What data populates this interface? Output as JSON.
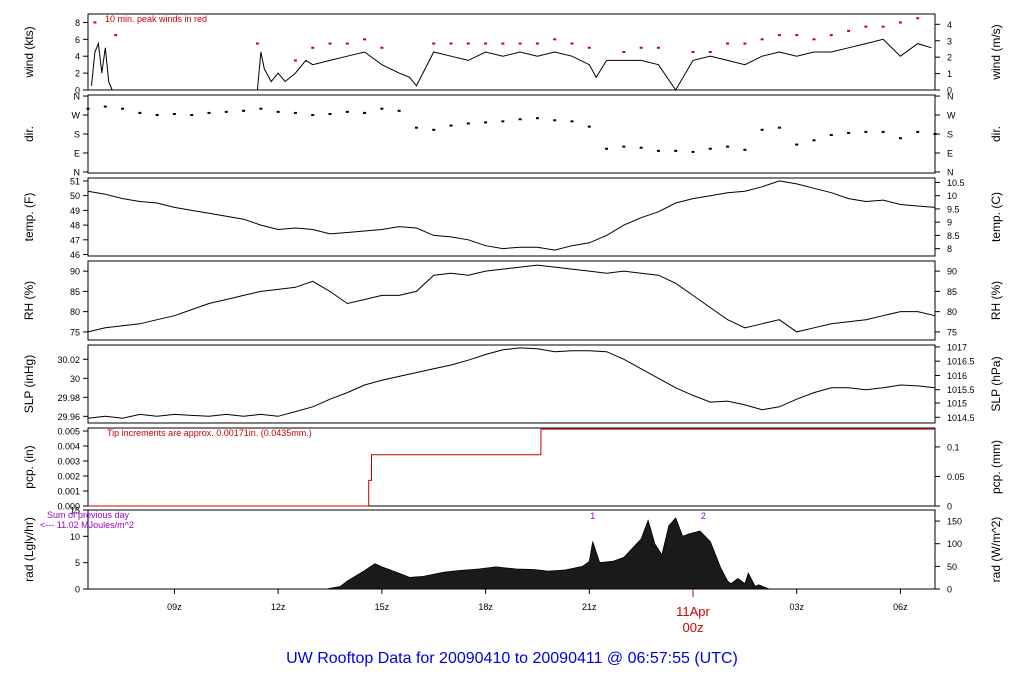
{
  "footer": {
    "title": "UW Rooftop Data for 20090410  to  20090411 @ 06:57:55  (UTC)"
  },
  "colors": {
    "peak": "#cc0000",
    "line": "#000000",
    "time": "#cc0000",
    "rad_note": "#9900cc",
    "footer": "#0000dd"
  },
  "chart_data": [
    {
      "type": "line",
      "key": "wind",
      "ylabel": "wind (kts)",
      "ylabel_right": "wind (m/s)",
      "ylim": [
        0,
        9
      ],
      "yticks": [
        0,
        2,
        4,
        6,
        8
      ],
      "right_ticks": [
        {
          "label": "0",
          "v": 0
        },
        {
          "label": "1",
          "v": 1.94
        },
        {
          "label": "2",
          "v": 3.89
        },
        {
          "label": "3",
          "v": 5.83
        },
        {
          "label": "4",
          "v": 7.78
        }
      ],
      "note": "10 min. peak winds in red",
      "series": [
        {
          "x": [
            6.6,
            6.7,
            6.8,
            6.9,
            7.0,
            7.1,
            7.2,
            7.5,
            8.0,
            9.0,
            10.0,
            11.0,
            11.4,
            11.5,
            11.6,
            11.8,
            12.0,
            12.2,
            12.5,
            12.8,
            13.0,
            13.5,
            14.0,
            14.5,
            15.0,
            15.5,
            15.8,
            16.0,
            16.5,
            17.0,
            17.5,
            18.0,
            18.5,
            19.0,
            19.5,
            20.0,
            20.5,
            21.0,
            21.2,
            21.5,
            22.0,
            22.5,
            23.0,
            23.5,
            24.0,
            24.5,
            25.0,
            25.5,
            26.0,
            26.5,
            27.0,
            27.5,
            28.0,
            28.5,
            29.0,
            29.5,
            30.0,
            30.5,
            30.9
          ],
          "y": [
            0.5,
            4.5,
            5.5,
            2,
            5,
            1,
            0,
            0,
            0,
            0,
            0,
            0,
            0,
            4.5,
            2.5,
            1,
            2,
            1,
            2,
            3.5,
            3,
            3.5,
            4,
            4.5,
            3,
            2,
            1.5,
            0.5,
            4.5,
            4,
            3.5,
            4.5,
            4,
            4.5,
            4,
            4.5,
            4,
            3,
            1.5,
            3.5,
            3.5,
            3.5,
            3,
            0,
            3.5,
            4,
            3.5,
            3,
            4,
            4.5,
            4,
            4.5,
            4.5,
            5,
            5.5,
            6,
            4,
            5.5,
            5
          ]
        },
        {
          "name": "peak",
          "x": [
            6.7,
            7.3,
            11.4,
            12.5,
            13.0,
            13.5,
            14.0,
            14.5,
            15.0,
            16.5,
            17.0,
            17.5,
            18.0,
            18.5,
            19.0,
            19.5,
            20.0,
            20.5,
            21.0,
            22.0,
            22.5,
            23.0,
            24.0,
            24.5,
            25.0,
            25.5,
            26.0,
            26.5,
            27.0,
            27.5,
            28.0,
            28.5,
            29.0,
            29.5,
            30.0,
            30.5
          ],
          "y": [
            8,
            6.5,
            5.5,
            3.5,
            5,
            5.5,
            5.5,
            6,
            5,
            5.5,
            5.5,
            5.5,
            5.5,
            5.5,
            5.5,
            5.5,
            6,
            5.5,
            5,
            4.5,
            5,
            5,
            4.5,
            4.5,
            5.5,
            5.5,
            6,
            6.5,
            6.5,
            6,
            6.5,
            7,
            7.5,
            7.5,
            8,
            8.5
          ]
        }
      ]
    },
    {
      "type": "scatter",
      "key": "dir",
      "ylabel": "dir.",
      "ylabel_right": "dir.",
      "ylim": [
        -5,
        365
      ],
      "yticks_labels": [
        "N",
        "E",
        "S",
        "W",
        "N"
      ],
      "yticks": [
        0,
        90,
        180,
        270,
        360
      ],
      "series": [
        {
          "x": [
            6.5,
            7.0,
            7.5,
            8.0,
            8.5,
            9.0,
            9.5,
            10.0,
            10.5,
            11.0,
            11.5,
            12.0,
            12.5,
            13.0,
            13.5,
            14.0,
            14.5,
            15.0,
            15.5,
            16.0,
            16.5,
            17.0,
            17.5,
            18.0,
            18.5,
            19.0,
            19.5,
            20.0,
            20.5,
            21.0,
            21.5,
            22.0,
            22.5,
            23.0,
            23.5,
            24.0,
            24.5,
            25.0,
            25.5,
            26.0,
            26.5,
            27.0,
            27.5,
            28.0,
            28.5,
            29.0,
            29.5,
            30.0,
            30.5,
            31.0
          ],
          "y": [
            300,
            310,
            300,
            280,
            270,
            275,
            270,
            280,
            285,
            290,
            300,
            285,
            280,
            270,
            275,
            285,
            280,
            300,
            290,
            210,
            200,
            220,
            230,
            235,
            240,
            250,
            255,
            245,
            240,
            215,
            110,
            120,
            115,
            100,
            100,
            95,
            110,
            120,
            105,
            200,
            210,
            130,
            150,
            175,
            185,
            190,
            190,
            160,
            190,
            180
          ]
        }
      ]
    },
    {
      "type": "line",
      "key": "temp",
      "ylabel": "temp. (F)",
      "ylabel_right": "temp. (C)",
      "ylim": [
        45.9,
        51.2
      ],
      "yticks": [
        46,
        47,
        48,
        49,
        50,
        51
      ],
      "right_ticks": [
        {
          "label": "8",
          "v": 46.4
        },
        {
          "label": "8.5",
          "v": 47.3
        },
        {
          "label": "9",
          "v": 48.2
        },
        {
          "label": "9.5",
          "v": 49.1
        },
        {
          "label": "10",
          "v": 50.0
        },
        {
          "label": "10.5",
          "v": 50.9
        }
      ],
      "series": [
        {
          "x": [
            6.5,
            7.0,
            7.5,
            8.0,
            8.5,
            9.0,
            9.5,
            10.0,
            10.5,
            11.0,
            11.5,
            12.0,
            12.5,
            13.0,
            13.5,
            14.0,
            14.5,
            15.0,
            15.5,
            16.0,
            16.5,
            17.0,
            17.5,
            18.0,
            18.5,
            19.0,
            19.5,
            20.0,
            20.5,
            21.0,
            21.5,
            22.0,
            22.5,
            23.0,
            23.5,
            24.0,
            24.5,
            25.0,
            25.5,
            26.0,
            26.5,
            27.0,
            27.5,
            28.0,
            28.5,
            29.0,
            29.5,
            30.0,
            30.5,
            31.0
          ],
          "y": [
            50.3,
            50.1,
            49.8,
            49.6,
            49.5,
            49.2,
            49.0,
            48.8,
            48.6,
            48.4,
            48.0,
            47.7,
            47.8,
            47.7,
            47.4,
            47.5,
            47.6,
            47.7,
            47.9,
            47.8,
            47.3,
            47.2,
            47.0,
            46.6,
            46.4,
            46.5,
            46.5,
            46.3,
            46.6,
            46.8,
            47.3,
            48.0,
            48.5,
            48.9,
            49.5,
            49.8,
            50.0,
            50.2,
            50.3,
            50.6,
            51.0,
            50.8,
            50.5,
            50.2,
            49.8,
            49.6,
            49.7,
            49.4,
            49.3,
            49.2
          ]
        }
      ]
    },
    {
      "type": "line",
      "key": "rh",
      "ylabel": "RH (%)",
      "ylabel_right": "RH (%)",
      "ylim": [
        73,
        92.5
      ],
      "yticks": [
        75,
        80,
        85,
        90
      ],
      "series": [
        {
          "x": [
            6.5,
            7.0,
            7.5,
            8.0,
            8.5,
            9.0,
            9.5,
            10.0,
            10.5,
            11.0,
            11.5,
            12.0,
            12.5,
            13.0,
            13.5,
            14.0,
            14.5,
            15.0,
            15.5,
            16.0,
            16.5,
            17.0,
            17.5,
            18.0,
            18.5,
            19.0,
            19.5,
            20.0,
            20.5,
            21.0,
            21.5,
            22.0,
            22.5,
            23.0,
            23.5,
            24.0,
            24.5,
            25.0,
            25.5,
            26.0,
            26.5,
            27.0,
            27.5,
            28.0,
            28.5,
            29.0,
            29.5,
            30.0,
            30.5,
            31.0
          ],
          "y": [
            75,
            76,
            76.5,
            77,
            78,
            79,
            80.5,
            82,
            83,
            84,
            85,
            85.5,
            86,
            87.5,
            85,
            82,
            83,
            84,
            84,
            85,
            89,
            89.5,
            89,
            90,
            90.5,
            91,
            91.5,
            91,
            90.5,
            90,
            89.5,
            90,
            89.5,
            89,
            87,
            84,
            81,
            78,
            76,
            77,
            78,
            75,
            76,
            77,
            77.5,
            78,
            79,
            80,
            80,
            79
          ]
        }
      ]
    },
    {
      "type": "line",
      "key": "slp",
      "ylabel": "SLP (inHg)",
      "ylabel_right": "SLP (hPa)",
      "ylim": [
        29.953,
        30.035
      ],
      "yticks": [
        29.96,
        29.98,
        30.0,
        30.02
      ],
      "right_ticks": [
        {
          "label": "1014.5",
          "v": 29.959
        },
        {
          "label": "1015",
          "v": 29.974
        },
        {
          "label": "1015.5",
          "v": 29.988
        },
        {
          "label": "1016",
          "v": 30.003
        },
        {
          "label": "1016.5",
          "v": 30.018
        },
        {
          "label": "1017",
          "v": 30.033
        }
      ],
      "series": [
        {
          "x": [
            6.5,
            7.0,
            7.5,
            8.0,
            8.5,
            9.0,
            9.5,
            10.0,
            10.5,
            11.0,
            11.5,
            12.0,
            12.5,
            13.0,
            13.5,
            14.0,
            14.5,
            15.0,
            15.5,
            16.0,
            16.5,
            17.0,
            17.5,
            18.0,
            18.5,
            19.0,
            19.5,
            20.0,
            20.5,
            21.0,
            21.5,
            22.0,
            22.5,
            23.0,
            23.5,
            24.0,
            24.5,
            25.0,
            25.5,
            26.0,
            26.5,
            27.0,
            27.5,
            28.0,
            28.5,
            29.0,
            29.5,
            30.0,
            30.5,
            31.0
          ],
          "y": [
            29.958,
            29.96,
            29.958,
            29.962,
            29.96,
            29.962,
            29.961,
            29.96,
            29.962,
            29.96,
            29.962,
            29.96,
            29.965,
            29.97,
            29.978,
            29.985,
            29.993,
            29.998,
            30.002,
            30.006,
            30.01,
            30.014,
            30.019,
            30.025,
            30.03,
            30.032,
            30.031,
            30.028,
            30.029,
            30.029,
            30.028,
            30.02,
            30.01,
            30.0,
            29.99,
            29.982,
            29.975,
            29.976,
            29.972,
            29.967,
            29.97,
            29.978,
            29.985,
            29.99,
            29.99,
            29.988,
            29.99,
            29.993,
            29.992,
            29.99
          ]
        }
      ]
    },
    {
      "type": "line",
      "key": "pcp",
      "ylabel": "pcp. (in)",
      "ylabel_right": "pcp. (mm)",
      "ylim": [
        0,
        0.0052
      ],
      "yticks": [
        0.0,
        0.001,
        0.002,
        0.003,
        0.004,
        0.005
      ],
      "yticks_labels": [
        "0.000",
        "0.001",
        "0.002",
        "0.003",
        "0.004",
        "0.005"
      ],
      "right_ticks": [
        {
          "label": "0",
          "v": 0
        },
        {
          "label": "0.05",
          "v": 0.00197
        },
        {
          "label": "0.1",
          "v": 0.00394
        }
      ],
      "note": "Tip increments are approx. 0.00171in. (0.0435mm.)",
      "series": [
        {
          "x": [
            6.5,
            14.62,
            14.62,
            14.7,
            14.7,
            19.6,
            19.6,
            31.0
          ],
          "y": [
            0,
            0,
            0.00171,
            0.00171,
            0.00342,
            0.00342,
            0.00513,
            0.00513
          ]
        }
      ]
    },
    {
      "type": "area",
      "key": "rad",
      "ylabel": "rad (Lgly/hr)",
      "ylabel_right": "rad (W/m^2)",
      "ylim": [
        0,
        15
      ],
      "yticks": [
        0,
        5,
        10,
        15
      ],
      "right_ticks": [
        {
          "label": "0",
          "v": 0
        },
        {
          "label": "50",
          "v": 4.3
        },
        {
          "label": "100",
          "v": 8.6
        },
        {
          "label": "150",
          "v": 12.9
        }
      ],
      "note_lines": [
        "Sum of previous day",
        "<--- 11.02 MJoules/m^2"
      ],
      "markers": [
        {
          "label": "1",
          "x": 21.1
        },
        {
          "label": "2",
          "x": 24.3
        }
      ],
      "series": [
        {
          "x": [
            13.4,
            13.8,
            14.0,
            14.5,
            14.8,
            15.0,
            15.5,
            15.8,
            16.2,
            16.8,
            17.2,
            17.8,
            18.3,
            18.9,
            19.4,
            19.8,
            20.3,
            20.8,
            21.0,
            21.1,
            21.3,
            21.7,
            22.0,
            22.5,
            22.7,
            22.9,
            23.1,
            23.3,
            23.5,
            23.7,
            23.9,
            24.2,
            24.5,
            24.8,
            25.0,
            25.1,
            25.3,
            25.5,
            25.6,
            25.8,
            25.9,
            26.2
          ],
          "y": [
            0,
            0.5,
            1.5,
            3.5,
            4.8,
            4.2,
            3.0,
            2.2,
            2.4,
            3.2,
            3.5,
            3.8,
            4.2,
            3.8,
            3.7,
            3.4,
            3.6,
            4.3,
            5.2,
            9.0,
            5.0,
            5.3,
            6.0,
            9.5,
            13.0,
            8.5,
            6.5,
            12.0,
            13.5,
            10.0,
            10.5,
            11.0,
            9.0,
            4.0,
            1.5,
            1.0,
            2.0,
            1.0,
            3.0,
            0.5,
            0.8,
            0
          ]
        }
      ]
    }
  ],
  "time_axis": {
    "ticks": [
      {
        "label": "09z",
        "h": 9
      },
      {
        "label": "12z",
        "h": 12
      },
      {
        "label": "15z",
        "h": 15
      },
      {
        "label": "18z",
        "h": 18
      },
      {
        "label": "21z",
        "h": 21
      },
      {
        "label": "03z",
        "h": 27
      },
      {
        "label": "06z",
        "h": 30
      }
    ],
    "date_label": "11Apr",
    "midnight_label": "00z",
    "midnight_h": 24
  }
}
